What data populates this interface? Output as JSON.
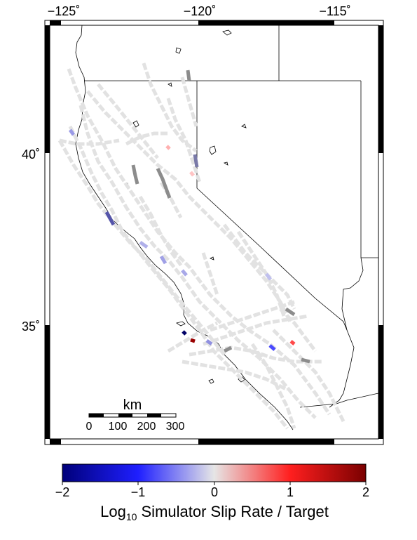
{
  "map": {
    "top_axis_labels": [
      "−125˚",
      "−120˚",
      "−115˚"
    ],
    "left_axis_labels": [
      "40˚",
      "35˚"
    ],
    "scalebar": {
      "unit": "km",
      "ticks": [
        "0",
        "100",
        "200",
        "300"
      ]
    }
  },
  "colorbar": {
    "tick_labels": [
      "−2",
      "−1",
      "0",
      "1",
      "2"
    ],
    "label_main": "Log",
    "label_sub": "10",
    "label_rest": " Simulator Slip Rate / Target",
    "min": -2,
    "max": 2,
    "colors": {
      "neg_end": "#00007a",
      "neg_mid": "#1f1fff",
      "zero": "#e6e6e6",
      "pos_mid": "#ff1f1f",
      "pos_end": "#7a0000"
    }
  },
  "colors": {
    "fault": "#e2e2e2",
    "fault_dark": "#8c8c8c",
    "frame": "#000000"
  }
}
